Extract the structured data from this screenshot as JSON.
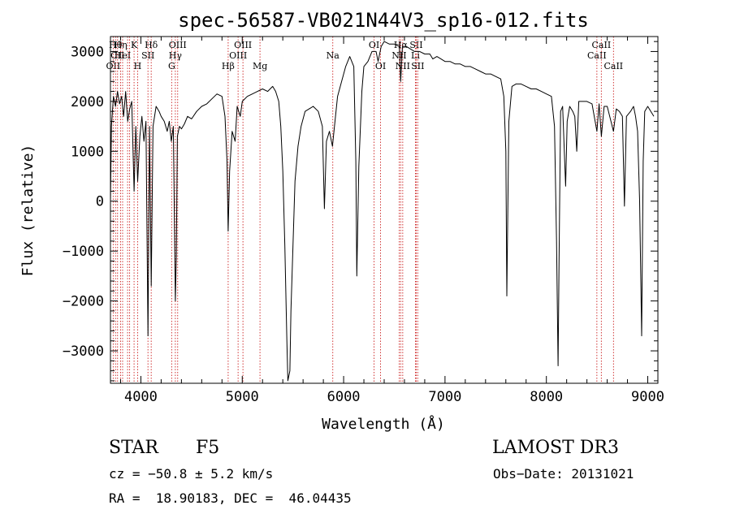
{
  "chart_data": {
    "type": "line",
    "title": "spec-56587-VB021N44V3_sp16-012.fits",
    "xlabel": "Wavelength (Å)",
    "ylabel": "Flux (relative)",
    "xlim": [
      3700,
      9100
    ],
    "ylim": [
      -3650,
      3300
    ],
    "x_ticks": [
      4000,
      5000,
      6000,
      7000,
      8000,
      9000
    ],
    "x_tick_labels": [
      "4000",
      "5000",
      "6000",
      "7000",
      "8000",
      "9000"
    ],
    "y_ticks": [
      -3000,
      -2000,
      -1000,
      0,
      1000,
      2000,
      3000
    ],
    "y_tick_labels": [
      "−3000",
      "−2000",
      "−1000",
      "0",
      "1000",
      "2000",
      "3000"
    ],
    "series": [
      {
        "color": "#000000",
        "points": [
          [
            3700,
            0
          ],
          [
            3710,
            1500
          ],
          [
            3730,
            2100
          ],
          [
            3750,
            1900
          ],
          [
            3770,
            2200
          ],
          [
            3790,
            1950
          ],
          [
            3810,
            2100
          ],
          [
            3830,
            1700
          ],
          [
            3850,
            2200
          ],
          [
            3870,
            1600
          ],
          [
            3890,
            1850
          ],
          [
            3910,
            2000
          ],
          [
            3933,
            200
          ],
          [
            3950,
            1500
          ],
          [
            3968,
            400
          ],
          [
            3990,
            1300
          ],
          [
            4010,
            1700
          ],
          [
            4030,
            1200
          ],
          [
            4050,
            1600
          ],
          [
            4070,
            -2700
          ],
          [
            4085,
            1500
          ],
          [
            4102,
            -1700
          ],
          [
            4120,
            1500
          ],
          [
            4150,
            1900
          ],
          [
            4180,
            1800
          ],
          [
            4200,
            1700
          ],
          [
            4230,
            1600
          ],
          [
            4260,
            1400
          ],
          [
            4280,
            1600
          ],
          [
            4300,
            1200
          ],
          [
            4320,
            1500
          ],
          [
            4340,
            -2000
          ],
          [
            4350,
            -1100
          ],
          [
            4360,
            1300
          ],
          [
            4380,
            1500
          ],
          [
            4400,
            1450
          ],
          [
            4430,
            1550
          ],
          [
            4460,
            1700
          ],
          [
            4500,
            1650
          ],
          [
            4550,
            1800
          ],
          [
            4600,
            1900
          ],
          [
            4650,
            1950
          ],
          [
            4700,
            2050
          ],
          [
            4750,
            2150
          ],
          [
            4800,
            2100
          ],
          [
            4830,
            1700
          ],
          [
            4850,
            800
          ],
          [
            4861,
            -600
          ],
          [
            4875,
            600
          ],
          [
            4900,
            1400
          ],
          [
            4930,
            1200
          ],
          [
            4950,
            1900
          ],
          [
            4980,
            1700
          ],
          [
            5000,
            2000
          ],
          [
            5050,
            2100
          ],
          [
            5100,
            2150
          ],
          [
            5150,
            2200
          ],
          [
            5200,
            2250
          ],
          [
            5250,
            2200
          ],
          [
            5300,
            2300
          ],
          [
            5330,
            2200
          ],
          [
            5360,
            2000
          ],
          [
            5380,
            1500
          ],
          [
            5400,
            600
          ],
          [
            5420,
            -900
          ],
          [
            5440,
            -2800
          ],
          [
            5450,
            -3600
          ],
          [
            5470,
            -3400
          ],
          [
            5480,
            -2200
          ],
          [
            5500,
            -900
          ],
          [
            5520,
            400
          ],
          [
            5550,
            1100
          ],
          [
            5580,
            1500
          ],
          [
            5620,
            1800
          ],
          [
            5660,
            1850
          ],
          [
            5700,
            1900
          ],
          [
            5750,
            1800
          ],
          [
            5790,
            1500
          ],
          [
            5810,
            -150
          ],
          [
            5830,
            1200
          ],
          [
            5860,
            1400
          ],
          [
            5890,
            1100
          ],
          [
            5910,
            1500
          ],
          [
            5940,
            2100
          ],
          [
            5980,
            2400
          ],
          [
            6020,
            2700
          ],
          [
            6060,
            2900
          ],
          [
            6100,
            2700
          ],
          [
            6120,
            800
          ],
          [
            6130,
            -1500
          ],
          [
            6150,
            700
          ],
          [
            6180,
            2200
          ],
          [
            6200,
            2700
          ],
          [
            6240,
            2800
          ],
          [
            6280,
            3000
          ],
          [
            6320,
            3000
          ],
          [
            6340,
            2800
          ],
          [
            6370,
            3100
          ],
          [
            6400,
            3200
          ],
          [
            6450,
            3150
          ],
          [
            6500,
            3150
          ],
          [
            6550,
            3100
          ],
          [
            6563,
            2400
          ],
          [
            6580,
            3100
          ],
          [
            6620,
            3100
          ],
          [
            6660,
            3050
          ],
          [
            6700,
            3000
          ],
          [
            6750,
            3000
          ],
          [
            6800,
            2950
          ],
          [
            6850,
            2950
          ],
          [
            6880,
            2850
          ],
          [
            6920,
            2900
          ],
          [
            6960,
            2850
          ],
          [
            7000,
            2800
          ],
          [
            7050,
            2800
          ],
          [
            7100,
            2750
          ],
          [
            7150,
            2750
          ],
          [
            7200,
            2700
          ],
          [
            7250,
            2700
          ],
          [
            7300,
            2650
          ],
          [
            7350,
            2600
          ],
          [
            7400,
            2550
          ],
          [
            7450,
            2550
          ],
          [
            7500,
            2500
          ],
          [
            7550,
            2450
          ],
          [
            7580,
            2100
          ],
          [
            7600,
            1000
          ],
          [
            7610,
            -1900
          ],
          [
            7630,
            1600
          ],
          [
            7660,
            2300
          ],
          [
            7700,
            2350
          ],
          [
            7750,
            2350
          ],
          [
            7800,
            2300
          ],
          [
            7850,
            2250
          ],
          [
            7900,
            2250
          ],
          [
            7950,
            2200
          ],
          [
            8000,
            2150
          ],
          [
            8050,
            2100
          ],
          [
            8080,
            1500
          ],
          [
            8100,
            -800
          ],
          [
            8115,
            -3300
          ],
          [
            8125,
            -1200
          ],
          [
            8140,
            1800
          ],
          [
            8160,
            1900
          ],
          [
            8190,
            300
          ],
          [
            8205,
            1600
          ],
          [
            8230,
            1900
          ],
          [
            8260,
            1800
          ],
          [
            8280,
            1700
          ],
          [
            8300,
            1000
          ],
          [
            8320,
            2000
          ],
          [
            8350,
            2000
          ],
          [
            8400,
            2000
          ],
          [
            8450,
            1950
          ],
          [
            8498,
            1400
          ],
          [
            8520,
            1950
          ],
          [
            8542,
            1300
          ],
          [
            8570,
            1900
          ],
          [
            8600,
            1900
          ],
          [
            8662,
            1400
          ],
          [
            8690,
            1850
          ],
          [
            8720,
            1800
          ],
          [
            8750,
            1700
          ],
          [
            8770,
            -100
          ],
          [
            8790,
            1700
          ],
          [
            8830,
            1800
          ],
          [
            8860,
            1900
          ],
          [
            8880,
            1700
          ],
          [
            8900,
            1400
          ],
          [
            8920,
            0
          ],
          [
            8940,
            -2700
          ],
          [
            8955,
            800
          ],
          [
            8970,
            1800
          ],
          [
            9000,
            1900
          ],
          [
            9030,
            1800
          ],
          [
            9060,
            1700
          ]
        ]
      }
    ],
    "lines": [
      {
        "x": 3727,
        "label": "OII",
        "row": 3
      },
      {
        "x": 3750,
        "label": "Hθ",
        "row": 1
      },
      {
        "x": 3770,
        "label": "CII",
        "row": 2
      },
      {
        "x": 3800,
        "label": "Hη",
        "row": 1
      },
      {
        "x": 3820,
        "label": "HeI",
        "row": 2
      },
      {
        "x": 3869,
        "label": "",
        "row": 0
      },
      {
        "x": 3889,
        "label": "",
        "row": 0
      },
      {
        "x": 3933,
        "label": "K",
        "row": 1
      },
      {
        "x": 3968,
        "label": "H",
        "row": 3
      },
      {
        "x": 4070,
        "label": "SII",
        "row": 2
      },
      {
        "x": 4102,
        "label": "Hδ",
        "row": 1
      },
      {
        "x": 4304,
        "label": "G",
        "row": 3
      },
      {
        "x": 4340,
        "label": "Hγ",
        "row": 2
      },
      {
        "x": 4363,
        "label": "OIII",
        "row": 1
      },
      {
        "x": 4861,
        "label": "Hβ",
        "row": 3
      },
      {
        "x": 4959,
        "label": "OIII",
        "row": 2
      },
      {
        "x": 5007,
        "label": "OIII",
        "row": 1
      },
      {
        "x": 5175,
        "label": "Mg",
        "row": 3
      },
      {
        "x": 5893,
        "label": "Na",
        "row": 2
      },
      {
        "x": 6300,
        "label": "OI",
        "row": 1
      },
      {
        "x": 6364,
        "label": "OI",
        "row": 3
      },
      {
        "x": 6548,
        "label": "NII",
        "row": 2
      },
      {
        "x": 6563,
        "label": "Hα",
        "row": 1
      },
      {
        "x": 6583,
        "label": "NII",
        "row": 3
      },
      {
        "x": 6708,
        "label": "Li",
        "row": 2
      },
      {
        "x": 6716,
        "label": "SII",
        "row": 1
      },
      {
        "x": 6731,
        "label": "SII",
        "row": 3
      },
      {
        "x": 8498,
        "label": "CaII",
        "row": 2
      },
      {
        "x": 8542,
        "label": "CaII",
        "row": 1
      },
      {
        "x": 8662,
        "label": "CaII",
        "row": 3
      }
    ]
  },
  "info": {
    "object_class": "STAR",
    "subclass": "F5",
    "survey": "LAMOST DR3",
    "redshift": "cz = −50.8 ± 5.2 km/s",
    "obs_date": "Obs−Date: 20131021",
    "coords": "RA =  18.90183, DEC =  46.04435"
  }
}
